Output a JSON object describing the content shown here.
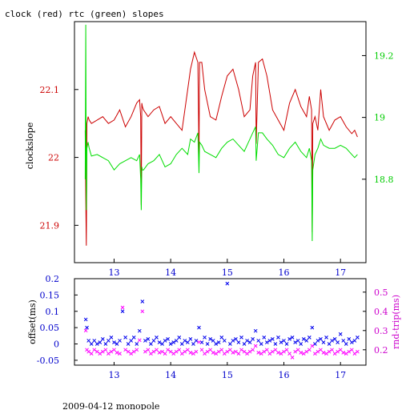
{
  "page": {
    "title": "clock (red) rtc (green) slopes",
    "footer": "2009-04-12 monopole"
  },
  "colors": {
    "clock": "#cc0000",
    "rtc": "#00dd00",
    "offset": "#0000ee",
    "rtt": "#ff00ff",
    "left_axis_upper": "#cc0000",
    "right_axis_upper": "#00cc00",
    "left_axis_lower": "#0000cc",
    "right_axis_lower": "#cc00cc",
    "x_axis": "#0000cc"
  },
  "chart_data": [
    {
      "type": "line",
      "title": "clock (red) rtc (green) slopes",
      "ylabel": "clockslope",
      "xlim": [
        12.3,
        17.45
      ],
      "xticks": [
        13,
        14,
        15,
        16,
        17
      ],
      "ylim": [
        21.845,
        22.2
      ],
      "yticks": [
        21.9,
        22,
        22.1
      ],
      "y2lim": [
        18.53,
        19.31
      ],
      "y2ticks": [
        18.8,
        19,
        19.2
      ],
      "series": [
        {
          "axis": "left",
          "color": "#cc0000",
          "x": [
            12.49,
            12.5,
            12.51,
            12.515,
            12.52,
            12.54,
            12.56,
            12.6,
            12.7,
            12.8,
            12.9,
            13.0,
            13.1,
            13.2,
            13.3,
            13.4,
            13.45,
            13.47,
            13.48,
            13.49,
            13.5,
            13.52,
            13.6,
            13.7,
            13.8,
            13.9,
            14.0,
            14.1,
            14.2,
            14.3,
            14.35,
            14.42,
            14.48,
            14.5,
            14.51,
            14.55,
            14.6,
            14.7,
            14.8,
            14.9,
            15.0,
            15.1,
            15.2,
            15.3,
            15.4,
            15.45,
            15.5,
            15.51,
            15.55,
            15.62,
            15.7,
            15.8,
            15.9,
            16.0,
            16.1,
            16.2,
            16.3,
            16.4,
            16.45,
            16.49,
            16.5,
            16.51,
            16.55,
            16.6,
            16.65,
            16.7,
            16.8,
            16.9,
            17.0,
            17.1,
            17.2,
            17.25,
            17.3
          ],
          "y": [
            22.04,
            21.94,
            21.87,
            21.95,
            22.05,
            22.06,
            22.055,
            22.05,
            22.055,
            22.06,
            22.05,
            22.055,
            22.07,
            22.045,
            22.06,
            22.08,
            22.085,
            22.06,
            21.93,
            22.08,
            22.075,
            22.07,
            22.06,
            22.07,
            22.075,
            22.05,
            22.06,
            22.05,
            22.04,
            22.1,
            22.13,
            22.155,
            22.14,
            22.0,
            22.14,
            22.14,
            22.1,
            22.06,
            22.055,
            22.09,
            22.12,
            22.13,
            22.1,
            22.06,
            22.07,
            22.12,
            22.14,
            22.02,
            22.14,
            22.145,
            22.12,
            22.07,
            22.055,
            22.04,
            22.08,
            22.1,
            22.075,
            22.06,
            22.09,
            22.07,
            21.89,
            22.05,
            22.06,
            22.04,
            22.1,
            22.06,
            22.04,
            22.055,
            22.06,
            22.045,
            22.035,
            22.04,
            22.03
          ]
        },
        {
          "axis": "right",
          "color": "#00dd00",
          "x": [
            12.49,
            12.5,
            12.51,
            12.515,
            12.52,
            12.54,
            12.56,
            12.6,
            12.7,
            12.8,
            12.9,
            13.0,
            13.1,
            13.2,
            13.3,
            13.4,
            13.45,
            13.47,
            13.48,
            13.49,
            13.5,
            13.52,
            13.6,
            13.7,
            13.8,
            13.9,
            14.0,
            14.1,
            14.2,
            14.3,
            14.35,
            14.42,
            14.48,
            14.5,
            14.51,
            14.55,
            14.6,
            14.7,
            14.8,
            14.9,
            15.0,
            15.1,
            15.2,
            15.3,
            15.4,
            15.45,
            15.5,
            15.51,
            15.55,
            15.62,
            15.7,
            15.8,
            15.9,
            16.0,
            16.1,
            16.2,
            16.3,
            16.4,
            16.45,
            16.49,
            16.5,
            16.51,
            16.55,
            16.6,
            16.65,
            16.7,
            16.8,
            16.9,
            17.0,
            17.1,
            17.2,
            17.25,
            17.3
          ],
          "y": [
            18.8,
            19.3,
            18.7,
            18.79,
            18.9,
            18.92,
            18.9,
            18.875,
            18.88,
            18.87,
            18.86,
            18.83,
            18.85,
            18.86,
            18.87,
            18.86,
            18.88,
            18.8,
            18.7,
            18.84,
            18.83,
            18.83,
            18.85,
            18.86,
            18.88,
            18.84,
            18.85,
            18.88,
            18.9,
            18.88,
            18.93,
            18.92,
            18.95,
            18.82,
            18.92,
            18.91,
            18.89,
            18.88,
            18.87,
            18.9,
            18.92,
            18.93,
            18.91,
            18.89,
            18.93,
            18.95,
            18.97,
            18.86,
            18.95,
            18.95,
            18.93,
            18.91,
            18.88,
            18.87,
            18.9,
            18.92,
            18.89,
            18.87,
            18.9,
            18.86,
            18.6,
            18.83,
            18.88,
            18.9,
            18.93,
            18.91,
            18.9,
            18.9,
            18.91,
            18.9,
            18.88,
            18.87,
            18.88
          ]
        }
      ]
    },
    {
      "type": "scatter",
      "ylabel": "offset(ms)",
      "y2label": "rnd-trip(ms)",
      "xlim": [
        12.3,
        17.45
      ],
      "xticks": [
        13,
        14,
        15,
        16,
        17
      ],
      "ylim": [
        -0.065,
        0.2
      ],
      "yticks": [
        -0.05,
        0,
        0.05,
        0.1,
        0.15,
        0.2
      ],
      "y2lim": [
        0.12,
        0.57
      ],
      "y2ticks": [
        0.2,
        0.3,
        0.4,
        0.5
      ],
      "series": [
        {
          "axis": "left",
          "color": "#0000ee",
          "x": [
            12.5,
            12.52,
            12.55,
            12.6,
            12.65,
            12.7,
            12.75,
            12.8,
            12.85,
            12.9,
            12.95,
            13.0,
            13.05,
            13.1,
            13.15,
            13.2,
            13.25,
            13.3,
            13.35,
            13.4,
            13.45,
            13.5,
            13.55,
            13.6,
            13.65,
            13.7,
            13.75,
            13.8,
            13.85,
            13.9,
            13.95,
            14.0,
            14.05,
            14.1,
            14.15,
            14.2,
            14.25,
            14.3,
            14.35,
            14.4,
            14.45,
            14.5,
            14.55,
            14.6,
            14.65,
            14.7,
            14.75,
            14.8,
            14.85,
            14.9,
            14.95,
            15.0,
            15.05,
            15.1,
            15.15,
            15.2,
            15.25,
            15.3,
            15.35,
            15.4,
            15.45,
            15.5,
            15.55,
            15.6,
            15.65,
            15.7,
            15.75,
            15.8,
            15.85,
            15.9,
            15.95,
            16.0,
            16.05,
            16.1,
            16.15,
            16.2,
            16.25,
            16.3,
            16.35,
            16.4,
            16.45,
            16.5,
            16.55,
            16.6,
            16.65,
            16.7,
            16.75,
            16.8,
            16.85,
            16.9,
            16.95,
            17.0,
            17.05,
            17.1,
            17.15,
            17.2,
            17.25,
            17.3
          ],
          "y": [
            0.075,
            0.05,
            0.01,
            0.0,
            0.01,
            0.0,
            0.005,
            0.015,
            0.0,
            0.01,
            0.02,
            0.005,
            0.0,
            0.01,
            0.1,
            0.02,
            0.0,
            0.01,
            0.02,
            0.0,
            0.04,
            0.13,
            0.01,
            0.015,
            0.0,
            0.01,
            0.02,
            0.005,
            0.0,
            0.01,
            0.015,
            0.0,
            0.005,
            0.01,
            0.02,
            0.0,
            0.01,
            0.005,
            0.015,
            0.0,
            0.01,
            0.05,
            0.005,
            0.02,
            0.0,
            0.015,
            0.01,
            0.0,
            0.005,
            0.02,
            0.01,
            0.185,
            0.0,
            0.01,
            0.015,
            0.005,
            0.02,
            0.0,
            0.01,
            0.005,
            0.015,
            0.04,
            0.01,
            0.0,
            0.02,
            0.005,
            0.01,
            0.015,
            0.0,
            0.02,
            0.005,
            0.01,
            0.0,
            0.015,
            0.02,
            0.005,
            0.01,
            0.0,
            0.015,
            0.01,
            0.02,
            0.05,
            0.0,
            0.01,
            0.015,
            0.005,
            0.02,
            0.0,
            0.01,
            0.015,
            0.005,
            0.03,
            0.01,
            0.0,
            0.015,
            0.005,
            0.01,
            0.02
          ]
        },
        {
          "axis": "right",
          "color": "#ff00ff",
          "x": [
            12.5,
            12.52,
            12.55,
            12.6,
            12.65,
            12.7,
            12.75,
            12.8,
            12.85,
            12.9,
            12.95,
            13.0,
            13.05,
            13.1,
            13.15,
            13.2,
            13.25,
            13.3,
            13.35,
            13.4,
            13.45,
            13.5,
            13.55,
            13.6,
            13.65,
            13.7,
            13.75,
            13.8,
            13.85,
            13.9,
            13.95,
            14.0,
            14.05,
            14.1,
            14.15,
            14.2,
            14.25,
            14.3,
            14.35,
            14.4,
            14.45,
            14.5,
            14.55,
            14.6,
            14.65,
            14.7,
            14.75,
            14.8,
            14.85,
            14.9,
            14.95,
            15.0,
            15.05,
            15.1,
            15.15,
            15.2,
            15.25,
            15.3,
            15.35,
            15.4,
            15.45,
            15.5,
            15.55,
            15.6,
            15.65,
            15.7,
            15.75,
            15.8,
            15.85,
            15.9,
            15.95,
            16.0,
            16.05,
            16.1,
            16.15,
            16.2,
            16.25,
            16.3,
            16.35,
            16.4,
            16.45,
            16.5,
            16.55,
            16.6,
            16.65,
            16.7,
            16.75,
            16.8,
            16.85,
            16.9,
            16.95,
            17.0,
            17.05,
            17.1,
            17.15,
            17.2,
            17.25,
            17.3
          ],
          "y": [
            0.3,
            0.2,
            0.19,
            0.18,
            0.2,
            0.19,
            0.18,
            0.19,
            0.2,
            0.18,
            0.19,
            0.2,
            0.185,
            0.18,
            0.42,
            0.2,
            0.19,
            0.18,
            0.19,
            0.2,
            0.25,
            0.4,
            0.19,
            0.2,
            0.18,
            0.19,
            0.2,
            0.185,
            0.19,
            0.18,
            0.2,
            0.19,
            0.18,
            0.19,
            0.2,
            0.18,
            0.19,
            0.2,
            0.185,
            0.18,
            0.19,
            0.24,
            0.2,
            0.18,
            0.19,
            0.2,
            0.185,
            0.18,
            0.19,
            0.2,
            0.18,
            0.19,
            0.2,
            0.185,
            0.19,
            0.18,
            0.2,
            0.19,
            0.18,
            0.19,
            0.2,
            0.22,
            0.185,
            0.18,
            0.19,
            0.2,
            0.18,
            0.19,
            0.2,
            0.185,
            0.18,
            0.19,
            0.2,
            0.18,
            0.16,
            0.19,
            0.2,
            0.185,
            0.18,
            0.19,
            0.2,
            0.22,
            0.18,
            0.19,
            0.2,
            0.185,
            0.18,
            0.19,
            0.2,
            0.18,
            0.19,
            0.2,
            0.185,
            0.18,
            0.19,
            0.2,
            0.18,
            0.19
          ]
        }
      ]
    }
  ]
}
